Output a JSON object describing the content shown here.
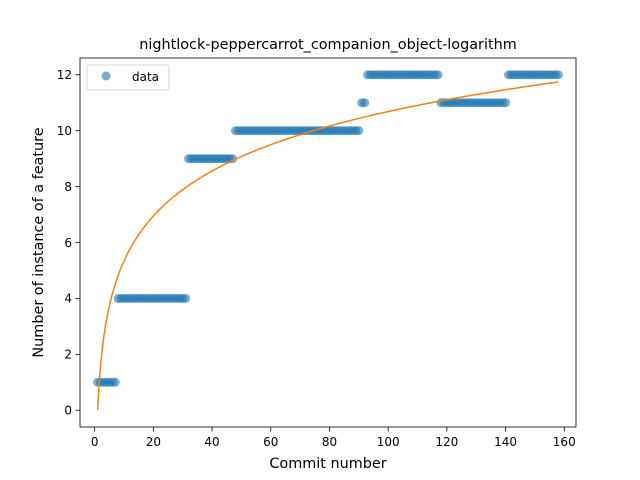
{
  "chart_data": {
    "type": "scatter",
    "title": "nightlock-peppercarrot_companion_object-logarithm",
    "xlabel": "Commit number",
    "ylabel": "Number of instance of a feature",
    "xlim": [
      -5,
      164
    ],
    "ylim": [
      -0.6,
      12.6
    ],
    "xticks": [
      0,
      20,
      40,
      60,
      80,
      100,
      120,
      140,
      160
    ],
    "yticks": [
      0,
      2,
      4,
      6,
      8,
      10,
      12
    ],
    "grid": false,
    "legend": {
      "position": "top-left",
      "entries": [
        "data"
      ]
    },
    "colors": {
      "data": "#1f77b4",
      "fit": "#ff7f0e"
    },
    "series": [
      {
        "name": "data",
        "kind": "points",
        "segments": [
          {
            "x_start": 1,
            "x_end": 7,
            "y": 1
          },
          {
            "x_start": 8,
            "x_end": 31,
            "y": 4
          },
          {
            "x_start": 32,
            "x_end": 47,
            "y": 9
          },
          {
            "x_start": 48,
            "x_end": 90,
            "y": 10
          },
          {
            "x_start": 91,
            "x_end": 92,
            "y": 11
          },
          {
            "x_start": 93,
            "x_end": 117,
            "y": 12
          },
          {
            "x_start": 118,
            "x_end": 140,
            "y": 11
          },
          {
            "x_start": 141,
            "x_end": 158,
            "y": 12
          }
        ]
      },
      {
        "kind": "fit-line",
        "function": "a*ln(x)+b",
        "a": 2.32,
        "b": 0.0,
        "x_range": [
          1,
          158
        ]
      }
    ]
  }
}
